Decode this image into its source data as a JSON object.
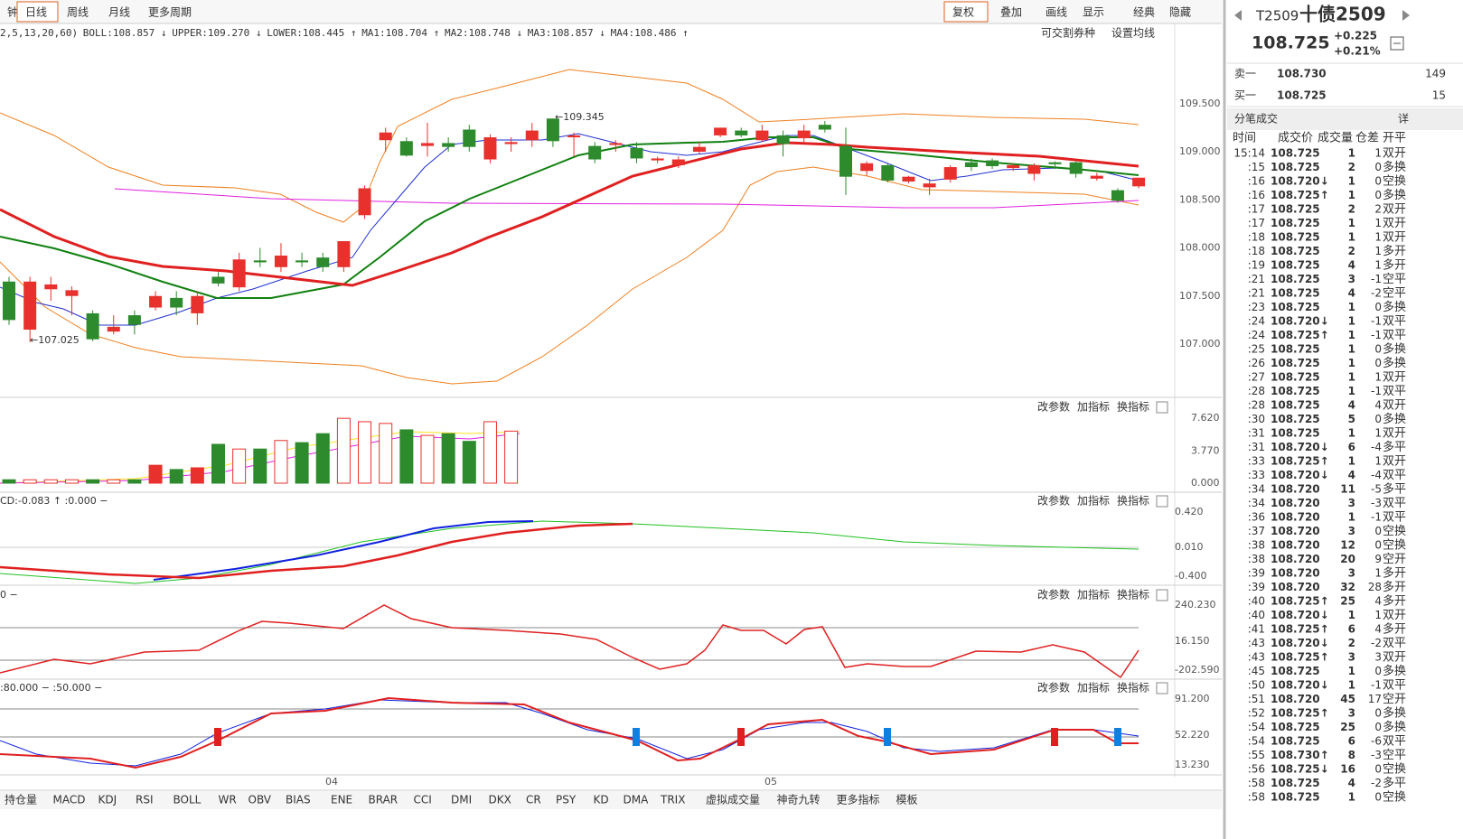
{
  "toolbar": {
    "periods": [
      "钟",
      "日线",
      "周线",
      "月线",
      "更多周期"
    ],
    "tools": [
      "复权",
      "叠加",
      "画线",
      "显示",
      "经典",
      "隐藏"
    ]
  },
  "indicator_header": [
    {
      "text": "2,5,13,20,60)",
      "color": "#333"
    },
    {
      "text": "BOLL:108.857 ↓",
      "color": "#e02020"
    },
    {
      "text": "UPPER:109.270 ↓",
      "color": "#f08020"
    },
    {
      "text": "LOWER:108.445 ↑",
      "color": "#f08020"
    },
    {
      "text": "MA1:108.704 ↑",
      "color": "#2030d0"
    },
    {
      "text": "MA2:108.748 ↓",
      "color": "#108010"
    },
    {
      "text": "MA3:108.857 ↓",
      "color": "#e02020"
    },
    {
      "text": "MA4:108.486 ↑",
      "color": "#e020e0"
    }
  ],
  "main_chart": {
    "buttons": [
      "可交割券种",
      "设置均线"
    ],
    "price_ticks": [
      {
        "value": 109.5,
        "label": "109.500"
      },
      {
        "value": 109,
        "label": "109.000"
      },
      {
        "value": 108.5,
        "label": "108.500"
      },
      {
        "value": 108,
        "label": "108.000"
      },
      {
        "value": 107.5,
        "label": "107.500"
      },
      {
        "value": 107,
        "label": "107.000"
      }
    ],
    "high_label": "←109.345",
    "low_label": "←107.025",
    "candles": [
      [
        107.65,
        107.25,
        107.7,
        107.2
      ],
      [
        107.15,
        107.65,
        107.7,
        107.02
      ],
      [
        107.57,
        107.62,
        107.7,
        107.45
      ],
      [
        107.5,
        107.56,
        107.6,
        107.3
      ],
      [
        107.32,
        107.05,
        107.35,
        107.03
      ],
      [
        107.13,
        107.18,
        107.3,
        107.1
      ],
      [
        107.3,
        107.2,
        107.35,
        107.1
      ],
      [
        107.38,
        107.5,
        107.55,
        107.35
      ],
      [
        107.48,
        107.38,
        107.55,
        107.3
      ],
      [
        107.32,
        107.5,
        107.55,
        107.2
      ],
      [
        107.7,
        107.63,
        107.75,
        107.6
      ],
      [
        107.59,
        107.88,
        107.95,
        107.55
      ],
      [
        107.87,
        107.85,
        108.0,
        107.8
      ],
      [
        107.8,
        107.92,
        108.05,
        107.75
      ],
      [
        107.87,
        107.85,
        107.95,
        107.8
      ],
      [
        107.9,
        107.8,
        107.95,
        107.75
      ],
      [
        107.8,
        108.07,
        108.07,
        107.75
      ],
      [
        108.34,
        108.62,
        108.65,
        108.3
      ],
      [
        109.12,
        109.2,
        109.25,
        109.0
      ],
      [
        109.11,
        108.96,
        109.15,
        108.95
      ],
      [
        109.06,
        109.09,
        109.3,
        108.95
      ],
      [
        109.09,
        109.05,
        109.15,
        109.0
      ],
      [
        109.23,
        109.05,
        109.28,
        109.0
      ],
      [
        108.92,
        109.15,
        109.18,
        108.88
      ],
      [
        109.08,
        109.1,
        109.15,
        109.0
      ],
      [
        109.12,
        109.22,
        109.3,
        109.05
      ],
      [
        109.345,
        109.11,
        109.345,
        109.05
      ],
      [
        109.15,
        109.17,
        109.2,
        108.95
      ],
      [
        109.06,
        108.92,
        109.1,
        108.88
      ],
      [
        109.07,
        109.09,
        109.12,
        109.0
      ],
      [
        109.04,
        108.93,
        109.1,
        108.88
      ],
      [
        108.91,
        108.93,
        108.95,
        108.88
      ],
      [
        108.86,
        108.92,
        108.95,
        108.83
      ],
      [
        109.0,
        109.05,
        109.1,
        108.98
      ],
      [
        109.17,
        109.25,
        109.25,
        109.15
      ],
      [
        109.22,
        109.17,
        109.25,
        109.15
      ],
      [
        109.12,
        109.22,
        109.28,
        109.1
      ],
      [
        109.17,
        109.08,
        109.22,
        108.95
      ],
      [
        109.14,
        109.22,
        109.28,
        109.1
      ],
      [
        109.28,
        109.23,
        109.32,
        109.2
      ],
      [
        109.06,
        108.74,
        109.25,
        108.55
      ],
      [
        108.8,
        108.88,
        108.9,
        108.75
      ],
      [
        108.86,
        108.7,
        108.88,
        108.68
      ],
      [
        108.69,
        108.74,
        108.75,
        108.67
      ],
      [
        108.63,
        108.67,
        108.72,
        108.55
      ],
      [
        108.71,
        108.84,
        108.86,
        108.68
      ],
      [
        108.89,
        108.84,
        108.93,
        108.8
      ],
      [
        108.91,
        108.85,
        108.93,
        108.82
      ],
      [
        108.83,
        108.86,
        108.88,
        108.8
      ],
      [
        108.77,
        108.86,
        108.88,
        108.7
      ],
      [
        108.89,
        108.87,
        108.9,
        108.82
      ],
      [
        108.89,
        108.77,
        108.9,
        108.73
      ],
      [
        108.72,
        108.75,
        108.78,
        108.7
      ],
      [
        108.6,
        108.49,
        108.62,
        108.47
      ],
      [
        108.64,
        108.73,
        108.73,
        108.62
      ]
    ]
  },
  "volume_panel": {
    "ticks": [
      {
        "value": 7.62,
        "label": "7.620"
      },
      {
        "value": 3.77,
        "label": "3.770"
      },
      {
        "value": 0,
        "label": "0.000"
      }
    ],
    "values": [
      0.4,
      0.4,
      0.4,
      0.4,
      0.4,
      0.4,
      0.4,
      2.1,
      1.6,
      1.8,
      4.55,
      4.0,
      4.0,
      5.0,
      4.75,
      5.8,
      7.6,
      7.2,
      7.0,
      6.25,
      5.6,
      5.8,
      4.9,
      7.2,
      6.1
    ]
  },
  "panel_buttons": [
    "改参数",
    "加指标",
    "换指标"
  ],
  "panels": [
    {
      "label": "CD:-0.083 ↑ :0.000 −",
      "ticks": [
        "0.420",
        "0.010",
        "-0.400"
      ]
    },
    {
      "label": "0 −",
      "ticks": [
        "240.230",
        "16.150",
        "-202.590"
      ]
    },
    {
      "label": ":80.000 − :50.000 −",
      "ticks": [
        "91.200",
        "52.220",
        "13.230"
      ]
    }
  ],
  "date_labels": [
    "04",
    "05"
  ],
  "bottom_tabs": [
    "持仓量",
    "MACD",
    "KDJ",
    "RSI",
    "BOLL",
    "WR",
    "OBV",
    "BIAS",
    "ENE",
    "BRAR",
    "CCI",
    "DMI",
    "DKX",
    "CR",
    "PSY",
    "KD",
    "DMA",
    "TRIX",
    "虚拟成交量",
    "神奇九转",
    "更多指标",
    "模板"
  ],
  "quote": {
    "code": "T2509",
    "name": "十债2509",
    "price": "108.725",
    "change": "+0.225",
    "pct": "+0.21%",
    "ask_label": "卖一",
    "ask_price": "108.730",
    "ask_vol": "149",
    "bid_label": "买一",
    "bid_price": "108.725",
    "bid_vol": "15"
  },
  "trades": {
    "title": "分笔成交",
    "detail": "详",
    "columns": [
      "时间",
      "成交价",
      "成交量",
      "仓差",
      "开平"
    ],
    "rows": [
      [
        "15:14",
        "108.725",
        "1",
        "1",
        "双开"
      ],
      [
        ":15",
        "108.725",
        "2",
        "0",
        "多换"
      ],
      [
        ":16",
        "108.720↓",
        "1",
        "0",
        "空换"
      ],
      [
        ":16",
        "108.725↑",
        "1",
        "0",
        "多换"
      ],
      [
        ":17",
        "108.725",
        "2",
        "2",
        "双开"
      ],
      [
        ":17",
        "108.725",
        "1",
        "1",
        "双开"
      ],
      [
        ":18",
        "108.725",
        "1",
        "1",
        "双开"
      ],
      [
        ":18",
        "108.725",
        "2",
        "1",
        "多开"
      ],
      [
        ":19",
        "108.725",
        "4",
        "1",
        "多开"
      ],
      [
        ":21",
        "108.725",
        "3",
        "-1",
        "空平"
      ],
      [
        ":21",
        "108.725",
        "4",
        "-2",
        "空平"
      ],
      [
        ":23",
        "108.725",
        "1",
        "0",
        "多换"
      ],
      [
        ":24",
        "108.720↓",
        "1",
        "-1",
        "双平"
      ],
      [
        ":24",
        "108.725↑",
        "1",
        "-1",
        "双平"
      ],
      [
        ":25",
        "108.725",
        "1",
        "0",
        "多换"
      ],
      [
        ":26",
        "108.725",
        "1",
        "0",
        "多换"
      ],
      [
        ":27",
        "108.725",
        "1",
        "1",
        "双开"
      ],
      [
        ":28",
        "108.725",
        "1",
        "-1",
        "双平"
      ],
      [
        ":28",
        "108.725",
        "4",
        "4",
        "双开"
      ],
      [
        ":30",
        "108.725",
        "5",
        "0",
        "多换"
      ],
      [
        ":31",
        "108.725",
        "1",
        "1",
        "双开"
      ],
      [
        ":31",
        "108.720↓",
        "6",
        "-4",
        "多平"
      ],
      [
        ":33",
        "108.725↑",
        "1",
        "1",
        "双开"
      ],
      [
        ":33",
        "108.720↓",
        "4",
        "-4",
        "双平"
      ],
      [
        ":34",
        "108.720",
        "11",
        "-5",
        "多平"
      ],
      [
        ":34",
        "108.720",
        "3",
        "-3",
        "双平"
      ],
      [
        ":36",
        "108.720",
        "1",
        "-1",
        "双平"
      ],
      [
        ":37",
        "108.720",
        "3",
        "0",
        "空换"
      ],
      [
        ":38",
        "108.720",
        "12",
        "0",
        "空换"
      ],
      [
        ":38",
        "108.720",
        "20",
        "9",
        "空开"
      ],
      [
        ":39",
        "108.720",
        "3",
        "1",
        "多开"
      ],
      [
        ":39",
        "108.720",
        "32",
        "28",
        "多开"
      ],
      [
        ":40",
        "108.725↑",
        "25",
        "4",
        "多开"
      ],
      [
        ":40",
        "108.720↓",
        "1",
        "1",
        "双开"
      ],
      [
        ":41",
        "108.725↑",
        "6",
        "4",
        "多开"
      ],
      [
        ":43",
        "108.720↓",
        "2",
        "-2",
        "双平"
      ],
      [
        ":43",
        "108.725↑",
        "3",
        "3",
        "双开"
      ],
      [
        ":45",
        "108.725",
        "1",
        "0",
        "多换"
      ],
      [
        ":50",
        "108.720↓",
        "1",
        "-1",
        "双平"
      ],
      [
        ":51",
        "108.720",
        "45",
        "17",
        "空开"
      ],
      [
        ":52",
        "108.725↑",
        "3",
        "0",
        "多换"
      ],
      [
        ":54",
        "108.725",
        "25",
        "0",
        "多换"
      ],
      [
        ":54",
        "108.725",
        "6",
        "-6",
        "双平"
      ],
      [
        ":55",
        "108.730↑",
        "8",
        "-3",
        "空平"
      ],
      [
        ":56",
        "108.725↓",
        "16",
        "0",
        "空换"
      ],
      [
        ":58",
        "108.725",
        "4",
        "-2",
        "多平"
      ],
      [
        ":58",
        "108.725",
        "1",
        "0",
        "空换"
      ]
    ]
  }
}
